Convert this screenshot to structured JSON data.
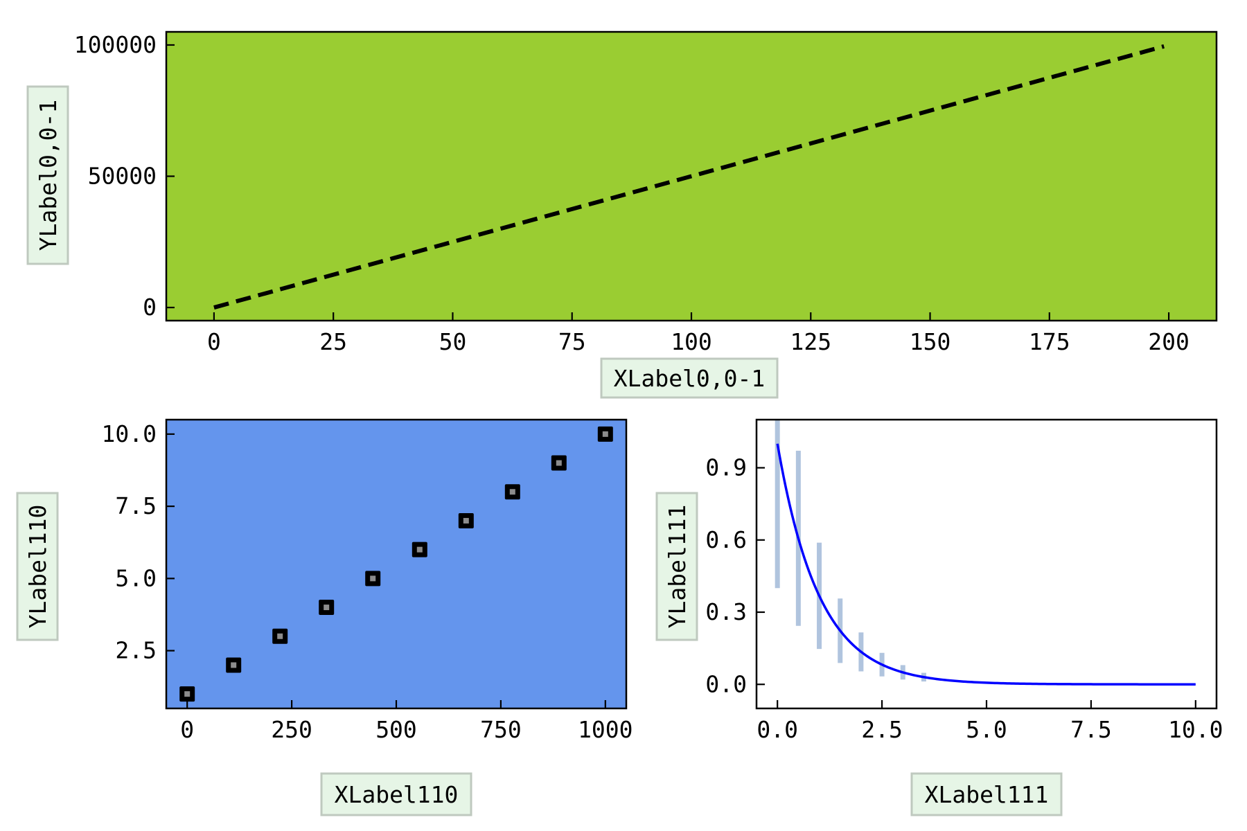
{
  "chart_data": [
    {
      "id": "top",
      "type": "line",
      "xlabel": "XLabel0,0-1",
      "ylabel": "YLabel0,0-1",
      "xlim": [
        -10,
        210
      ],
      "ylim": [
        -5000,
        105000
      ],
      "xticks": [
        0,
        25,
        50,
        75,
        100,
        125,
        150,
        175,
        200
      ],
      "xtick_labels": [
        "0",
        "25",
        "50",
        "75",
        "100",
        "125",
        "150",
        "175",
        "200"
      ],
      "yticks": [
        0,
        50000,
        100000
      ],
      "ytick_labels": [
        "0",
        "50000",
        "100000"
      ],
      "background": "#9acd32",
      "series": [
        {
          "x": [
            0,
            199
          ],
          "y": [
            0,
            99500
          ],
          "color": "#000000",
          "style": "dashed"
        }
      ]
    },
    {
      "id": "bottom-left",
      "type": "scatter",
      "xlabel": "XLabel110",
      "ylabel": "YLabel110",
      "xlim": [
        -50,
        1050
      ],
      "ylim": [
        0.5,
        10.5
      ],
      "xticks": [
        0,
        250,
        500,
        750,
        1000
      ],
      "xtick_labels": [
        "0",
        "250",
        "500",
        "750",
        "1000"
      ],
      "yticks": [
        2.5,
        5.0,
        7.5,
        10.0
      ],
      "ytick_labels": [
        "2.5",
        "5.0",
        "7.5",
        "10.0"
      ],
      "background": "#6495ed",
      "series": [
        {
          "x": [
            0,
            111,
            222,
            333,
            444,
            556,
            667,
            778,
            889,
            1000
          ],
          "y": [
            1,
            2,
            3,
            4,
            5,
            6,
            7,
            8,
            9,
            10
          ],
          "marker": "square",
          "edge_color": "#000000",
          "face_color": "#8c8c8c"
        }
      ]
    },
    {
      "id": "bottom-right",
      "type": "line",
      "xlabel": "XLabel111",
      "ylabel": "YLabel111",
      "xlim": [
        -0.5,
        10.5
      ],
      "ylim": [
        -0.1,
        1.1
      ],
      "xticks": [
        0,
        2.5,
        5,
        7.5,
        10
      ],
      "xtick_labels": [
        "0.0",
        "2.5",
        "5.0",
        "7.5",
        "10.0"
      ],
      "yticks": [
        0,
        0.3,
        0.6,
        0.9
      ],
      "ytick_labels": [
        "0.0",
        "0.3",
        "0.6",
        "0.9"
      ],
      "background": "#ffffff",
      "curve": {
        "function": "exp(-x)",
        "x_range": [
          0,
          10
        ],
        "color": "#0000ff"
      },
      "errorbars": {
        "x": [
          0,
          0.5,
          1,
          1.5,
          2,
          2.5,
          3,
          3.5
        ],
        "y": [
          1.0,
          0.607,
          0.368,
          0.223,
          0.135,
          0.082,
          0.05,
          0.03
        ],
        "yerr": [
          0.6,
          0.364,
          0.221,
          0.134,
          0.081,
          0.049,
          0.03,
          0.018
        ],
        "color": "#b0c4de"
      }
    }
  ]
}
